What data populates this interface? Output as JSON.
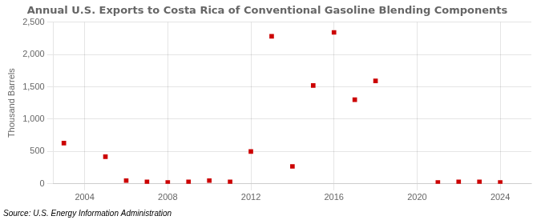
{
  "chart_data": {
    "type": "scatter",
    "title": "Annual U.S. Exports to Costa Rica of Conventional Gasoline Blending Components",
    "ylabel": "Thousand Barrels",
    "annotations": [
      "Source: U.S. Energy Information Administration"
    ],
    "x": [
      2003,
      2005,
      2006,
      2007,
      2008,
      2009,
      2010,
      2011,
      2012,
      2013,
      2014,
      2015,
      2016,
      2017,
      2018,
      2021,
      2022,
      2023,
      2024
    ],
    "values": [
      630,
      420,
      50,
      30,
      20,
      30,
      50,
      30,
      500,
      2280,
      270,
      1520,
      2340,
      1300,
      1590,
      20,
      30,
      30,
      20
    ],
    "color": "#cc0000",
    "marker": "square",
    "xlim": [
      2002.5,
      2025.5
    ],
    "ylim": [
      0,
      2500
    ],
    "xticks": [
      2004,
      2008,
      2012,
      2016,
      2020,
      2024
    ],
    "yticks": [
      0,
      500,
      {
        "value": 1000,
        "label": "1,000"
      },
      {
        "value": 1500,
        "label": "1,500"
      },
      {
        "value": 2000,
        "label": "2,000"
      },
      {
        "value": 2500,
        "label": "2,500"
      }
    ],
    "grid": true
  }
}
